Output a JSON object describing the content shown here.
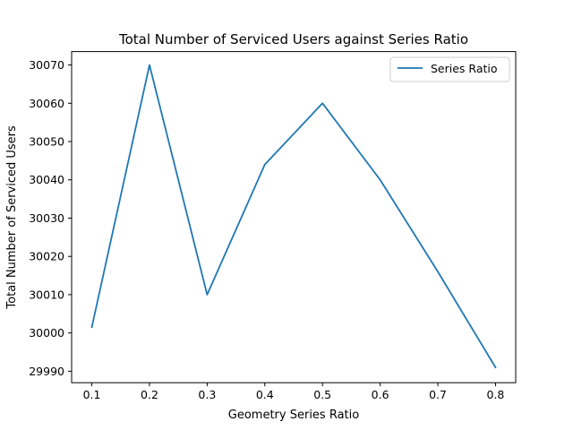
{
  "chart_data": {
    "type": "line",
    "title": "Total Number of Serviced Users against Series Ratio",
    "xlabel": "Geometry Series Ratio",
    "ylabel": "Total Number of Serviced Users",
    "x": [
      0.1,
      0.2,
      0.3,
      0.4,
      0.5,
      0.6,
      0.7,
      0.8
    ],
    "x_ticks": [
      "0.1",
      "0.2",
      "0.3",
      "0.4",
      "0.5",
      "0.6",
      "0.7",
      "0.8"
    ],
    "y_ticks": [
      "29990",
      "30000",
      "30010",
      "30020",
      "30030",
      "30040",
      "30050",
      "30060",
      "30070"
    ],
    "xlim": [
      0.065,
      0.835
    ],
    "ylim": [
      29987,
      30073.5
    ],
    "series": [
      {
        "name": "Series Ratio",
        "color": "#1f77b4",
        "values": [
          30001.5,
          30070,
          30010,
          30044,
          30060,
          30040,
          30016,
          29991
        ]
      }
    ],
    "legend_position": "top-right",
    "grid": false
  }
}
